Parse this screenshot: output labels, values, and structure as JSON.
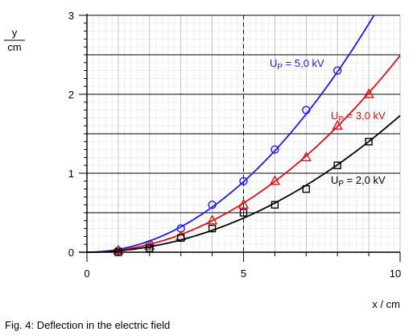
{
  "chart_data": {
    "type": "line",
    "xlabel": "x / cm",
    "ylabel_numerator": "y",
    "ylabel_denominator": "cm",
    "xlim": [
      0,
      10
    ],
    "ylim": [
      0,
      3
    ],
    "xticks": [
      0,
      5,
      10
    ],
    "yticks": [
      0,
      1,
      2,
      3
    ],
    "grid": true,
    "series": [
      {
        "name": "U_P = 5,0 kV",
        "label_text": "= 5,0 kV",
        "color": "#1a1aff",
        "marker": "circle",
        "k": 0.0357,
        "x": [
          1,
          2,
          3,
          4,
          5,
          6,
          7,
          8
        ],
        "values": [
          0.02,
          0.1,
          0.3,
          0.6,
          0.9,
          1.3,
          1.8,
          2.3
        ]
      },
      {
        "name": "U_P = 3,0 kV",
        "label_text": "= 3,0 kV",
        "color": "#e01010",
        "marker": "triangle",
        "k": 0.0249,
        "x": [
          1,
          2,
          3,
          4,
          5,
          6,
          7,
          8,
          9
        ],
        "values": [
          0.02,
          0.08,
          0.2,
          0.4,
          0.6,
          0.9,
          1.2,
          1.6,
          2.0
        ]
      },
      {
        "name": "U_P = 2,0 kV",
        "label_text": "= 2,0 kV",
        "color": "#000000",
        "marker": "square",
        "k": 0.0173,
        "x": [
          1,
          2,
          3,
          4,
          5,
          6,
          7,
          8,
          9
        ],
        "values": [
          0.0,
          0.05,
          0.18,
          0.3,
          0.5,
          0.6,
          0.8,
          1.1,
          1.4
        ]
      }
    ],
    "caption": "Fig. 4: Deflection in the electric field"
  }
}
